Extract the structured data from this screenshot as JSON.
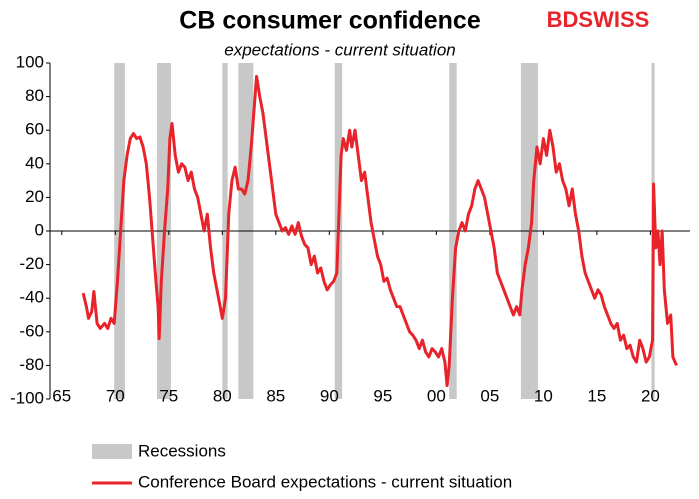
{
  "chart_data": {
    "type": "line",
    "title": "CB consumer confidence",
    "subtitle": "expectations - current situation",
    "brand": "BDSWISS",
    "xlim": [
      1963.9,
      2023.7
    ],
    "xticks": [
      {
        "value": 1965,
        "label": "65"
      },
      {
        "value": 1970,
        "label": "70"
      },
      {
        "value": 1975,
        "label": "75"
      },
      {
        "value": 1980,
        "label": "80"
      },
      {
        "value": 1985,
        "label": "85"
      },
      {
        "value": 1990,
        "label": "90"
      },
      {
        "value": 1995,
        "label": "95"
      },
      {
        "value": 2000,
        "label": "00"
      },
      {
        "value": 2005,
        "label": "05"
      },
      {
        "value": 2010,
        "label": "10"
      },
      {
        "value": 2015,
        "label": "15"
      },
      {
        "value": 2020,
        "label": "20"
      }
    ],
    "ylim": [
      -100,
      100
    ],
    "yticks": [
      -100,
      -80,
      -60,
      -40,
      -20,
      0,
      20,
      40,
      60,
      80,
      100
    ],
    "recessions": {
      "name": "Recessions",
      "color": "#c8c8c8",
      "spans": [
        [
          1969.9,
          1970.9
        ],
        [
          1973.9,
          1975.2
        ],
        [
          1980.0,
          1980.5
        ],
        [
          1981.5,
          1982.9
        ],
        [
          1990.5,
          1991.2
        ],
        [
          2001.2,
          2001.9
        ],
        [
          2007.9,
          2009.5
        ],
        [
          2020.1,
          2020.4
        ]
      ]
    },
    "x": [
      1967.0,
      1967.3,
      1967.5,
      1967.8,
      1968.0,
      1968.3,
      1968.6,
      1969.0,
      1969.3,
      1969.6,
      1969.9,
      1970.2,
      1970.5,
      1970.8,
      1971.1,
      1971.4,
      1971.7,
      1972.0,
      1972.3,
      1972.6,
      1972.9,
      1973.2,
      1973.5,
      1973.8,
      1974.0,
      1974.1,
      1974.3,
      1974.6,
      1974.9,
      1975.1,
      1975.3,
      1975.6,
      1975.9,
      1976.2,
      1976.5,
      1976.8,
      1977.1,
      1977.4,
      1977.7,
      1978.0,
      1978.3,
      1978.6,
      1978.9,
      1979.2,
      1979.5,
      1979.8,
      1980.0,
      1980.3,
      1980.6,
      1980.9,
      1981.2,
      1981.5,
      1981.8,
      1982.1,
      1982.4,
      1982.7,
      1983.0,
      1983.2,
      1983.5,
      1983.8,
      1984.1,
      1984.4,
      1984.7,
      1985.0,
      1985.3,
      1985.6,
      1985.9,
      1986.2,
      1986.5,
      1986.8,
      1987.1,
      1987.4,
      1987.7,
      1988.0,
      1988.3,
      1988.6,
      1988.9,
      1989.2,
      1989.5,
      1989.8,
      1990.1,
      1990.4,
      1990.7,
      1990.9,
      1991.1,
      1991.3,
      1991.6,
      1991.9,
      1992.1,
      1992.4,
      1992.7,
      1993.0,
      1993.3,
      1993.6,
      1993.9,
      1994.2,
      1994.5,
      1994.8,
      1995.1,
      1995.4,
      1995.7,
      1996.0,
      1996.3,
      1996.6,
      1996.9,
      1997.2,
      1997.5,
      1997.8,
      1998.1,
      1998.4,
      1998.7,
      1999.0,
      1999.3,
      1999.6,
      1999.9,
      2000.2,
      2000.5,
      2000.8,
      2001.0,
      2001.2,
      2001.5,
      2001.8,
      2002.1,
      2002.4,
      2002.7,
      2003.0,
      2003.3,
      2003.6,
      2003.9,
      2004.2,
      2004.5,
      2004.8,
      2005.1,
      2005.4,
      2005.7,
      2006.0,
      2006.3,
      2006.6,
      2006.9,
      2007.2,
      2007.5,
      2007.8,
      2008.0,
      2008.3,
      2008.6,
      2008.9,
      2009.1,
      2009.4,
      2009.7,
      2010.0,
      2010.3,
      2010.6,
      2010.9,
      2011.2,
      2011.5,
      2011.8,
      2012.1,
      2012.4,
      2012.7,
      2013.0,
      2013.3,
      2013.6,
      2013.9,
      2014.2,
      2014.5,
      2014.8,
      2015.1,
      2015.4,
      2015.7,
      2016.0,
      2016.3,
      2016.6,
      2016.9,
      2017.2,
      2017.5,
      2017.8,
      2018.1,
      2018.4,
      2018.7,
      2019.0,
      2019.3,
      2019.6,
      2019.9,
      2020.2,
      2020.3,
      2020.5,
      2020.7,
      2020.9,
      2021.1,
      2021.3,
      2021.6,
      2021.9,
      2022.1,
      2022.3,
      2022.45
    ],
    "series": [
      {
        "name": "Conference Board expectations - current situation",
        "color": "#e8232a",
        "values": [
          -37,
          -45,
          -52,
          -48,
          -36,
          -55,
          -58,
          -55,
          -58,
          -52,
          -55,
          -30,
          0,
          30,
          45,
          55,
          58,
          55,
          56,
          50,
          40,
          20,
          -5,
          -30,
          -45,
          -64,
          -30,
          0,
          25,
          55,
          64,
          45,
          35,
          40,
          38,
          30,
          35,
          25,
          20,
          10,
          0,
          10,
          -10,
          -25,
          -35,
          -45,
          -52,
          -40,
          10,
          30,
          38,
          25,
          25,
          22,
          30,
          50,
          75,
          92,
          80,
          70,
          55,
          40,
          25,
          10,
          5,
          0,
          2,
          -2,
          3,
          -2,
          5,
          -3,
          -8,
          -10,
          -20,
          -15,
          -25,
          -22,
          -30,
          -35,
          -32,
          -30,
          -25,
          10,
          45,
          55,
          48,
          60,
          50,
          60,
          45,
          30,
          35,
          20,
          5,
          -5,
          -15,
          -20,
          -30,
          -28,
          -35,
          -40,
          -45,
          -45,
          -50,
          -55,
          -60,
          -62,
          -65,
          -70,
          -65,
          -72,
          -75,
          -70,
          -72,
          -75,
          -70,
          -78,
          -92,
          -80,
          -40,
          -10,
          0,
          5,
          0,
          10,
          15,
          25,
          30,
          25,
          20,
          10,
          0,
          -10,
          -25,
          -30,
          -35,
          -40,
          -45,
          -50,
          -45,
          -50,
          -35,
          -20,
          -10,
          5,
          30,
          50,
          40,
          55,
          45,
          60,
          50,
          35,
          40,
          30,
          25,
          15,
          25,
          10,
          0,
          -15,
          -25,
          -30,
          -35,
          -40,
          -35,
          -38,
          -45,
          -50,
          -55,
          -58,
          -55,
          -65,
          -62,
          -70,
          -68,
          -75,
          -78,
          -65,
          -70,
          -78,
          -75,
          -65,
          28,
          -10,
          0,
          -20,
          0,
          -35,
          -55,
          -50,
          -75,
          -78,
          -80
        ]
      }
    ]
  }
}
